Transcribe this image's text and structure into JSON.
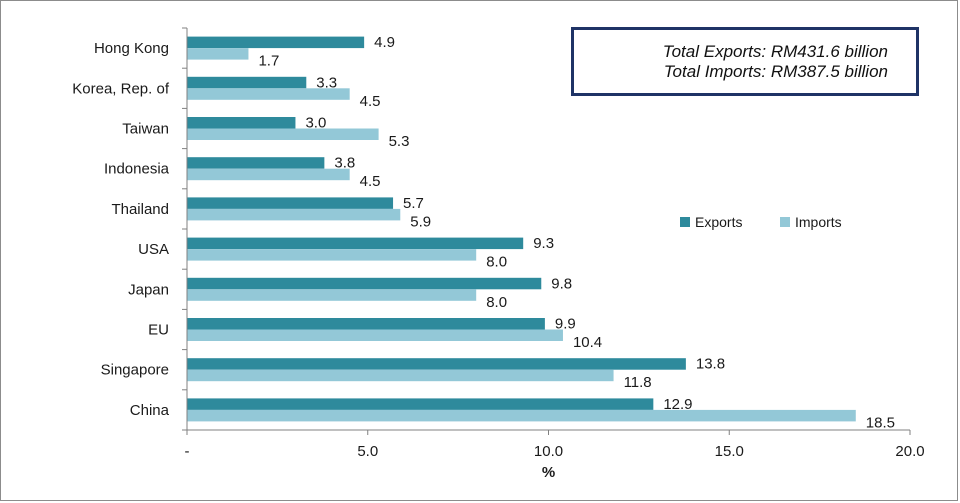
{
  "chart_data": {
    "type": "bar",
    "orientation": "horizontal",
    "categories": [
      "Hong Kong",
      "Korea, Rep. of",
      "Taiwan",
      "Indonesia",
      "Thailand",
      "USA",
      "Japan",
      "EU",
      "Singapore",
      "China"
    ],
    "series": [
      {
        "name": "Exports",
        "color": "#2e8a9c",
        "values": [
          4.9,
          3.3,
          3.0,
          3.8,
          5.7,
          9.3,
          9.8,
          9.9,
          13.8,
          12.9
        ],
        "labels": [
          "4.9",
          "3.3",
          "3.0",
          "3.8",
          "5.7",
          "9.3",
          "9.8",
          "9.9",
          "13.8",
          "12.9"
        ]
      },
      {
        "name": "Imports",
        "color": "#93c8d7",
        "values": [
          1.7,
          4.5,
          5.3,
          4.5,
          5.9,
          8.0,
          8.0,
          10.4,
          11.8,
          18.5
        ],
        "labels": [
          "1.7",
          "4.5",
          "5.3",
          "4.5",
          "5.9",
          "8.0",
          "8.0",
          "10.4",
          "11.8",
          "18.5"
        ]
      }
    ],
    "xlim": [
      0,
      20
    ],
    "xticks": [
      0,
      5,
      10,
      15,
      20
    ],
    "xtick_labels": [
      "-",
      "5.0",
      "10.0",
      "15.0",
      "20.0"
    ],
    "xlabel": "%",
    "title": "",
    "grid": false,
    "legend_position": "right"
  },
  "annotation": {
    "line1": "Total Exports: RM431.6 billion",
    "line2": "Total Imports: RM387.5 billion"
  }
}
